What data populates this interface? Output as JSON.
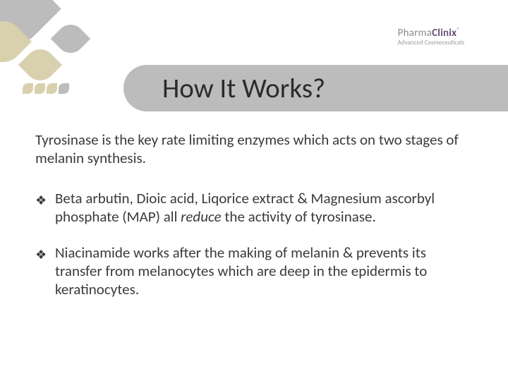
{
  "brand": {
    "name_part1": "Pharma",
    "name_part2": "Clinix",
    "tm": "®",
    "tagline": "Advanced Cosmeceuticals",
    "color_primary": "#6a4c74",
    "color_secondary": "#928690",
    "fontsize_name": 15,
    "fontsize_tagline": 9
  },
  "title": {
    "text": "How It Works?",
    "bar_color": "#bcbcbc",
    "text_color": "#2b2b2b",
    "fontsize": 39
  },
  "intro": {
    "text": "Tyrosinase is the key rate limiting enzymes which acts on two stages of melanin synthesis.",
    "fontsize": 21,
    "color": "#3a3a3a"
  },
  "bullets": {
    "marker": "❖",
    "fontsize": 21,
    "color": "#3a3a3a",
    "items": [
      {
        "pre": "Beta arbutin, Dioic acid, Liqorice extract & Magnesium ascorbyl phosphate (MAP) all ",
        "italic": "reduce",
        "post": " the activity of tyrosinase."
      },
      {
        "pre": "Niacinamide works after the making of melanin & prevents its transfer from melanocytes which are deep in the epidermis to keratinocytes.",
        "italic": "",
        "post": ""
      }
    ]
  },
  "decor": {
    "grey": "#bcbcbc",
    "beige": "#d9d1ae",
    "background": "#ffffff"
  }
}
